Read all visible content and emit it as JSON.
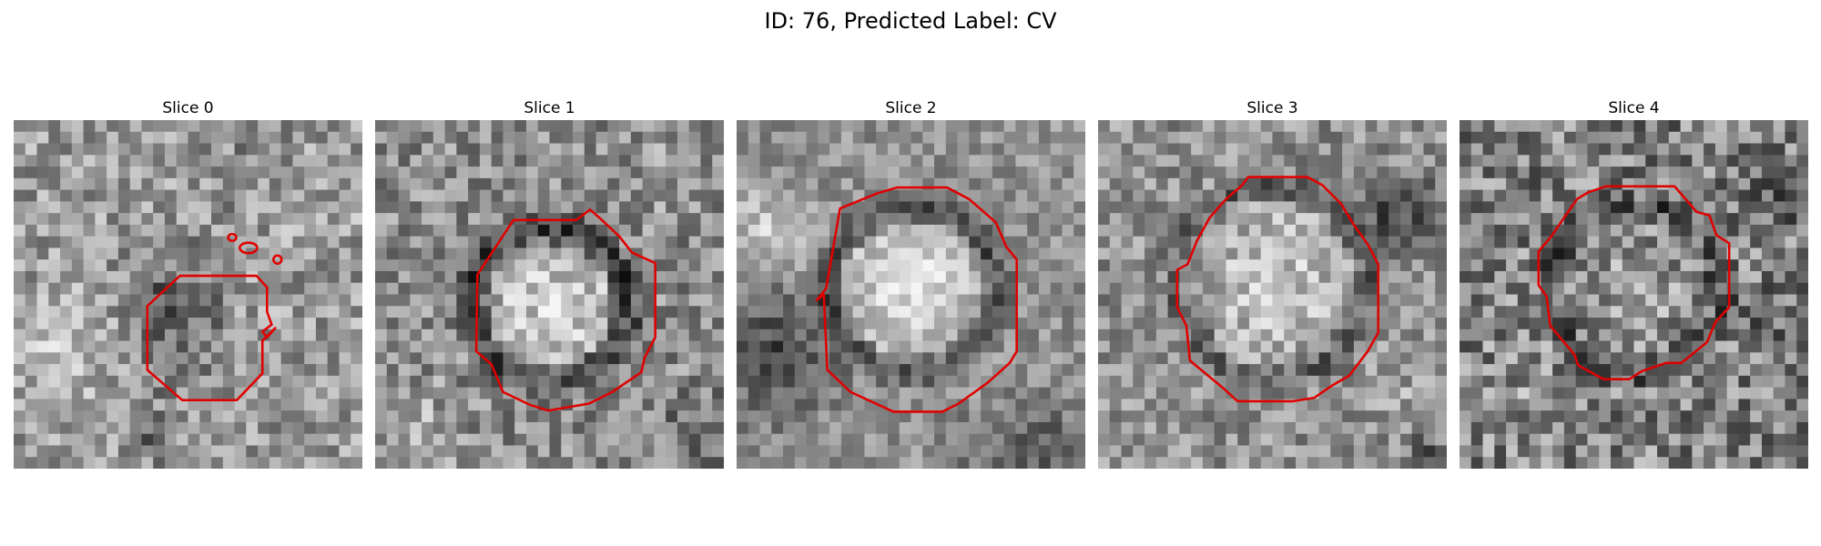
{
  "figure": {
    "title": "ID: 76, Predicted Label: CV"
  },
  "panels": [
    {
      "title": "Slice 0"
    },
    {
      "title": "Slice 1"
    },
    {
      "title": "Slice 2"
    },
    {
      "title": "Slice 3"
    },
    {
      "title": "Slice 4"
    }
  ],
  "colors": {
    "contour": "#e00000"
  }
}
